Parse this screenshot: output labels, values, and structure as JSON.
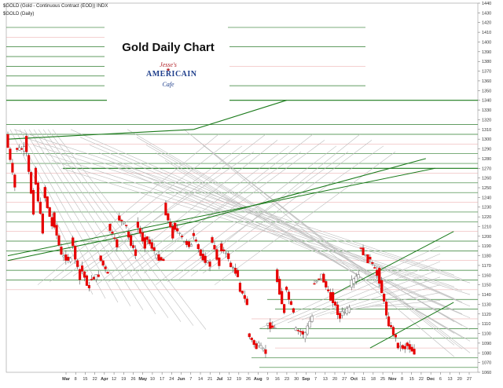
{
  "header": {
    "symbol_line": "$GOLD (Gold - Continuous Contract (EOD)) INDX",
    "legend_line": "$GOLD (Daily)"
  },
  "title": "Gold Daily Chart",
  "logo": {
    "line1": "Jesse's",
    "line2": "AMERICAIN",
    "line3": "Cafe"
  },
  "colors": {
    "up_candle": "#ffffff",
    "down_candle": "#e60000",
    "green_lines": "#2e7d2e",
    "gray_lines": "#bdbdbd",
    "support_lines": "#1a7a1a"
  },
  "chart_data": {
    "type": "candlestick",
    "y_axis": {
      "min": 1060,
      "max": 1440,
      "ticks": [
        1440,
        1430,
        1420,
        1410,
        1400,
        1390,
        1380,
        1370,
        1360,
        1350,
        1340,
        1330,
        1320,
        1310,
        1300,
        1290,
        1280,
        1270,
        1260,
        1250,
        1240,
        1230,
        1220,
        1210,
        1200,
        1190,
        1180,
        1170,
        1160,
        1150,
        1140,
        1130,
        1120,
        1110,
        1100,
        1090,
        1080,
        1070,
        1060
      ]
    },
    "x_axis": {
      "labels": [
        "Mar",
        "8",
        "15",
        "22",
        "Apr",
        "12",
        "19",
        "26",
        "May",
        "10",
        "17",
        "24",
        "Jun",
        "7",
        "14",
        "21",
        "Jul",
        "12",
        "19",
        "26",
        "Aug",
        "9",
        "16",
        "23",
        "30",
        "Sep",
        "7",
        "13",
        "20",
        "27",
        "Oct",
        "11",
        "18",
        "25",
        "Nov",
        "8",
        "15",
        "22",
        "Dec",
        "6",
        "13",
        "20",
        "27"
      ]
    },
    "price_path": [
      [
        1305,
        1250
      ],
      [
        1290,
        1290
      ],
      [
        1305,
        1225
      ],
      [
        1270,
        1205
      ],
      [
        1250,
        1210
      ],
      [
        1222,
        1180
      ],
      [
        1180,
        1175
      ],
      [
        1200,
        1155
      ],
      [
        1170,
        1145
      ],
      [
        1155,
        1160
      ],
      [
        1180,
        1160
      ],
      [
        1212,
        1190
      ],
      [
        1220,
        1210
      ],
      [
        1205,
        1180
      ],
      [
        1215,
        1190
      ],
      [
        1200,
        1185
      ],
      [
        1180,
        1175
      ],
      [
        1232,
        1200
      ],
      [
        1212,
        1198
      ],
      [
        1195,
        1190
      ],
      [
        1205,
        1180
      ],
      [
        1180,
        1170
      ],
      [
        1200,
        1170
      ],
      [
        1190,
        1178
      ],
      [
        1172,
        1160
      ],
      [
        1150,
        1130
      ],
      [
        1100,
        1085
      ],
      [
        1090,
        1080
      ],
      [
        1110,
        1105
      ],
      [
        1165,
        1120
      ],
      [
        1150,
        1120
      ],
      [
        1105,
        1100
      ],
      [
        1095,
        1118
      ],
      [
        1150,
        1160
      ],
      [
        1160,
        1135
      ],
      [
        1140,
        1115
      ],
      [
        1120,
        1125
      ],
      [
        1150,
        1160
      ],
      [
        1190,
        1175
      ],
      [
        1180,
        1160
      ],
      [
        1165,
        1120
      ],
      [
        1115,
        1095
      ],
      [
        1088,
        1085
      ],
      [
        1090,
        1080
      ]
    ],
    "horizontal_lines": [
      1415,
      1405,
      1395,
      1385,
      1375,
      1365,
      1355,
      1340,
      1315,
      1305,
      1295,
      1285,
      1275,
      1265,
      1255,
      1245,
      1235,
      1225,
      1215,
      1205,
      1195,
      1185,
      1175,
      1165,
      1155,
      1145,
      1135,
      1125,
      1115,
      1105,
      1095,
      1085,
      1075,
      1065
    ],
    "channel_upper": [
      [
        0,
        1300
      ],
      [
        20,
        1310
      ],
      [
        30,
        1340
      ]
    ],
    "channel_lower": [
      [
        0,
        1175
      ],
      [
        20,
        1215
      ],
      [
        45,
        1280
      ]
    ],
    "support_lines": [
      [
        [
          0,
          1180
        ],
        [
          46,
          1270
        ]
      ],
      [
        [
          39,
          1085
        ],
        [
          48,
          1132
        ]
      ],
      [
        [
          35,
          1140
        ],
        [
          48,
          1205
        ]
      ]
    ],
    "xlabel": "",
    "ylabel": ""
  }
}
